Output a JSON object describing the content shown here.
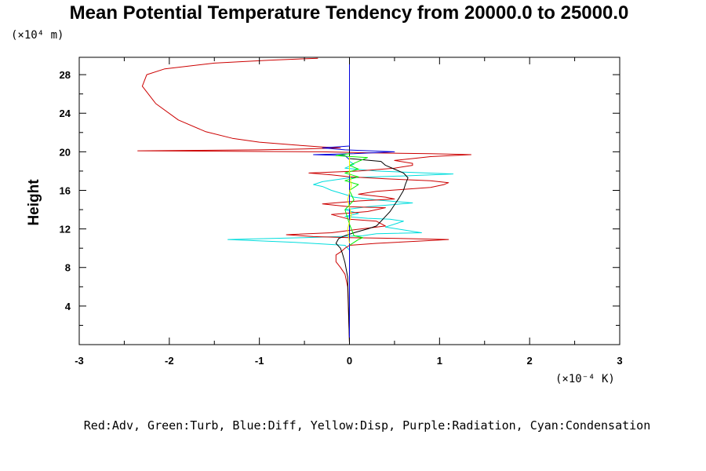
{
  "chart_data": {
    "type": "line",
    "title": "Mean Potential Temperature Tendency from 20000.0 to 25000.0",
    "ylabel": "Height",
    "xlabel": "",
    "y_unit_label": "(×10⁴ m)",
    "x_unit_label": "(×10⁻⁴ K)",
    "legend_text": "Red:Adv, Green:Turb, Blue:Diff, Yellow:Disp, Purple:Radiation, Cyan:Condensation",
    "xlim": [
      -3,
      3
    ],
    "ylim": [
      0,
      29.8
    ],
    "x_ticks": [
      -3,
      -2,
      -1,
      0,
      1,
      2,
      3
    ],
    "x_tick_labels": [
      "-3",
      "-2",
      "-1",
      "0",
      "1",
      "2",
      "3"
    ],
    "y_ticks": [
      4,
      8,
      12,
      16,
      20,
      24,
      28
    ],
    "y_tick_labels": [
      "4",
      "8",
      "12",
      "16",
      "20",
      "24",
      "28"
    ],
    "colors": {
      "Adv": "#cc0000",
      "Turb": "#00ee00",
      "Diff": "#0000dd",
      "Disp": "#eeee00",
      "Radiation": "#bb00bb",
      "Condensation": "#00dddd",
      "Total": "#000000"
    },
    "series": [
      {
        "key": "Condensation",
        "points": [
          [
            0.0,
            0.2
          ],
          [
            0.0,
            6
          ],
          [
            0.0,
            9.8
          ],
          [
            -0.05,
            10.3
          ],
          [
            -0.6,
            10.6
          ],
          [
            -1.35,
            10.9
          ],
          [
            -0.5,
            11.1
          ],
          [
            0.15,
            11.3
          ],
          [
            0.3,
            11.5
          ],
          [
            0.8,
            11.6
          ],
          [
            0.4,
            12.2
          ],
          [
            0.6,
            12.8
          ],
          [
            0.45,
            13.0
          ],
          [
            0.2,
            13.1
          ],
          [
            -0.05,
            13.3
          ],
          [
            0.1,
            13.6
          ],
          [
            -0.05,
            14.0
          ],
          [
            0.2,
            14.3
          ],
          [
            0.7,
            14.7
          ],
          [
            0.3,
            15.0
          ],
          [
            0.05,
            15.3
          ],
          [
            -0.2,
            16.0
          ],
          [
            -0.3,
            16.4
          ],
          [
            -0.4,
            16.6
          ],
          [
            -0.3,
            16.9
          ],
          [
            0.0,
            17.3
          ],
          [
            0.6,
            17.5
          ],
          [
            1.15,
            17.7
          ],
          [
            0.6,
            17.9
          ],
          [
            0.3,
            18.0
          ],
          [
            -0.05,
            18.3
          ],
          [
            0.05,
            18.7
          ],
          [
            0.0,
            19.0
          ],
          [
            0.0,
            29.8
          ]
        ]
      },
      {
        "key": "Adv",
        "points": [
          [
            0.0,
            0.2
          ],
          [
            -0.02,
            6
          ],
          [
            -0.05,
            7.3
          ],
          [
            -0.1,
            8.0
          ],
          [
            -0.15,
            8.6
          ],
          [
            -0.15,
            9.3
          ],
          [
            -0.1,
            9.6
          ],
          [
            -0.05,
            10.0
          ],
          [
            0.0,
            10.3
          ],
          [
            0.3,
            10.5
          ],
          [
            0.9,
            10.8
          ],
          [
            1.1,
            10.9
          ],
          [
            0.6,
            11.0
          ],
          [
            0.0,
            11.1
          ],
          [
            -0.4,
            11.2
          ],
          [
            -0.7,
            11.4
          ],
          [
            -0.2,
            11.6
          ],
          [
            0.05,
            11.9
          ],
          [
            0.4,
            12.3
          ],
          [
            0.3,
            12.8
          ],
          [
            0.0,
            13.0
          ],
          [
            -0.2,
            13.5
          ],
          [
            0.2,
            13.8
          ],
          [
            0.4,
            14.2
          ],
          [
            0.0,
            14.3
          ],
          [
            -0.3,
            14.6
          ],
          [
            0.1,
            14.9
          ],
          [
            0.5,
            15.1
          ],
          [
            0.4,
            15.3
          ],
          [
            0.1,
            15.6
          ],
          [
            0.3,
            15.9
          ],
          [
            0.6,
            16.1
          ],
          [
            0.9,
            16.3
          ],
          [
            1.05,
            16.6
          ],
          [
            1.1,
            16.8
          ],
          [
            0.9,
            17.0
          ],
          [
            0.4,
            17.2
          ],
          [
            0.0,
            17.4
          ],
          [
            -0.2,
            17.6
          ],
          [
            -0.45,
            17.8
          ],
          [
            0.1,
            18.0
          ],
          [
            0.5,
            18.3
          ],
          [
            0.7,
            18.6
          ],
          [
            0.7,
            18.8
          ],
          [
            0.5,
            19.1
          ],
          [
            0.7,
            19.3
          ],
          [
            0.9,
            19.5
          ],
          [
            1.35,
            19.7
          ],
          [
            0.9,
            19.8
          ],
          [
            0.2,
            19.9
          ],
          [
            -0.3,
            20.0
          ],
          [
            -2.35,
            20.1
          ],
          [
            -1.0,
            20.2
          ],
          [
            -0.5,
            20.3
          ],
          [
            -0.1,
            20.4
          ],
          [
            -0.3,
            20.5
          ],
          [
            -0.6,
            20.7
          ],
          [
            -1.0,
            21.0
          ],
          [
            -1.3,
            21.4
          ],
          [
            -1.6,
            22.1
          ],
          [
            -1.9,
            23.3
          ],
          [
            -2.15,
            25.0
          ],
          [
            -2.3,
            26.8
          ],
          [
            -2.25,
            28.0
          ],
          [
            -2.05,
            28.6
          ],
          [
            -1.5,
            29.2
          ],
          [
            -0.9,
            29.5
          ],
          [
            -0.35,
            29.7
          ]
        ]
      },
      {
        "key": "Total",
        "points": [
          [
            0.0,
            0.2
          ],
          [
            -0.02,
            7
          ],
          [
            -0.05,
            8.5
          ],
          [
            -0.08,
            9.5
          ],
          [
            -0.1,
            10.0
          ],
          [
            -0.15,
            10.5
          ],
          [
            -0.12,
            11.0
          ],
          [
            -0.05,
            11.3
          ],
          [
            0.05,
            11.6
          ],
          [
            0.2,
            12.0
          ],
          [
            0.3,
            12.3
          ],
          [
            0.35,
            12.8
          ],
          [
            0.4,
            13.3
          ],
          [
            0.45,
            13.8
          ],
          [
            0.5,
            14.5
          ],
          [
            0.55,
            15.2
          ],
          [
            0.6,
            16.0
          ],
          [
            0.62,
            16.6
          ],
          [
            0.65,
            17.3
          ],
          [
            0.6,
            17.8
          ],
          [
            0.5,
            18.2
          ],
          [
            0.4,
            18.6
          ],
          [
            0.35,
            19.0
          ],
          [
            0.0,
            19.3
          ],
          [
            0.0,
            29.8
          ]
        ]
      },
      {
        "key": "Diff",
        "points": [
          [
            0.0,
            0.2
          ],
          [
            0.0,
            19.2
          ],
          [
            -0.05,
            19.6
          ],
          [
            -0.4,
            19.7
          ],
          [
            0.05,
            19.8
          ],
          [
            0.5,
            20.0
          ],
          [
            -0.05,
            20.2
          ],
          [
            -0.3,
            20.4
          ],
          [
            0.0,
            20.6
          ],
          [
            0.0,
            29.8
          ]
        ]
      },
      {
        "key": "Turb",
        "points": [
          [
            0.0,
            10.3
          ],
          [
            0.05,
            10.6
          ],
          [
            0.1,
            10.9
          ],
          [
            0.15,
            11.1
          ],
          [
            0.05,
            11.3
          ],
          [
            0.0,
            12.5
          ],
          [
            -0.05,
            14.0
          ],
          [
            0.05,
            15.0
          ],
          [
            0.0,
            16.0
          ],
          [
            0.1,
            16.6
          ],
          [
            -0.05,
            17.0
          ],
          [
            0.1,
            17.4
          ],
          [
            -0.05,
            17.8
          ],
          [
            0.1,
            18.2
          ],
          [
            0.0,
            18.6
          ],
          [
            0.1,
            19.0
          ],
          [
            0.2,
            19.4
          ],
          [
            -0.15,
            19.6
          ],
          [
            0.0,
            19.8
          ]
        ]
      },
      {
        "key": "Disp",
        "points": [
          [
            0.0,
            10.5
          ],
          [
            -0.02,
            12.0
          ],
          [
            0.02,
            13.5
          ],
          [
            -0.02,
            15.0
          ],
          [
            0.02,
            16.5
          ],
          [
            0.0,
            18.0
          ],
          [
            0.0,
            19.5
          ]
        ]
      }
    ]
  }
}
